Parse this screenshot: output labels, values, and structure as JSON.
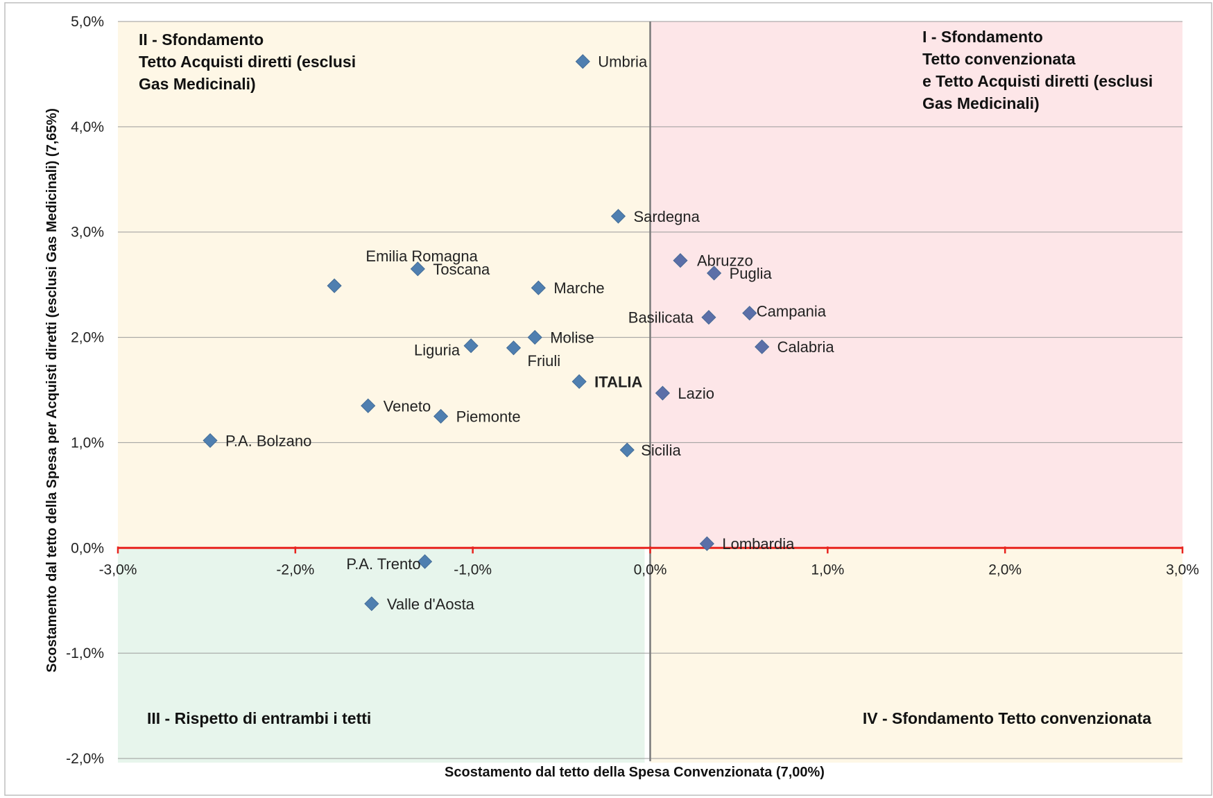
{
  "chart_data": {
    "type": "scatter",
    "title": "",
    "xlabel": "Scostamento dal tetto della Spesa Convenzionata (7,00%)",
    "ylabel": "Scostamento dal tetto della Spesa per Acquisti diretti   (esclusi Gas Medicinali) (7,65%)",
    "xlim": [
      -0.03,
      0.03
    ],
    "ylim": [
      -0.02,
      0.05
    ],
    "x_ticks": [
      {
        "value": -0.03,
        "label": "-3,0%"
      },
      {
        "value": -0.02,
        "label": "-2,0%"
      },
      {
        "value": -0.01,
        "label": "-1,0%"
      },
      {
        "value": 0.0,
        "label": "0,0%"
      },
      {
        "value": 0.01,
        "label": "1,0%"
      },
      {
        "value": 0.02,
        "label": "2,0%"
      },
      {
        "value": 0.03,
        "label": "3,0%"
      }
    ],
    "y_ticks": [
      {
        "value": 0.05,
        "label": "5,0%"
      },
      {
        "value": 0.04,
        "label": "4,0%"
      },
      {
        "value": 0.03,
        "label": "3,0%"
      },
      {
        "value": 0.02,
        "label": "2,0%"
      },
      {
        "value": 0.01,
        "label": "1,0%"
      },
      {
        "value": 0.0,
        "label": "0,0%"
      },
      {
        "value": -0.01,
        "label": "-1,0%"
      },
      {
        "value": -0.02,
        "label": "-2,0%"
      }
    ],
    "grid": "horizontal",
    "quadrants": [
      {
        "id": "I",
        "lines": [
          "I - Sfondamento",
          "Tetto convenzionata",
          "e Tetto Acquisti diretti (esclusi",
          "Gas Medicinali)"
        ],
        "color": "#fde6e8"
      },
      {
        "id": "II",
        "lines": [
          "II - Sfondamento",
          "Tetto Acquisti diretti (esclusi",
          "Gas Medicinali)"
        ],
        "color": "#fef7e6"
      },
      {
        "id": "III",
        "lines": [
          "III - Rispetto di entrambi i tetti"
        ],
        "color": "#e7f5ec"
      },
      {
        "id": "IV",
        "lines": [
          "IV - Sfondamento Tetto convenzionata"
        ],
        "color": "#fef7e6"
      }
    ],
    "marker_color": "#4f7fb0",
    "marker_color_alt": "#5b6fa8",
    "threshold_line_color": "#e8231e",
    "points": [
      {
        "label": "Umbria",
        "x": -0.0038,
        "y": 0.0462
      },
      {
        "label": "Sardegna",
        "x": -0.0018,
        "y": 0.0315
      },
      {
        "label": "Emilia Romagna",
        "x": -0.0178,
        "y": 0.0249
      },
      {
        "label": "Toscana",
        "x": -0.0131,
        "y": 0.0265
      },
      {
        "label": "Marche",
        "x": -0.0063,
        "y": 0.0247
      },
      {
        "label": "Abruzzo",
        "x": 0.0017,
        "y": 0.0273
      },
      {
        "label": "Puglia",
        "x": 0.0036,
        "y": 0.0261
      },
      {
        "label": "Campania",
        "x": 0.0056,
        "y": 0.0223
      },
      {
        "label": "Basilicata",
        "x": 0.0033,
        "y": 0.0219
      },
      {
        "label": "Calabria",
        "x": 0.0063,
        "y": 0.0191
      },
      {
        "label": "Molise",
        "x": -0.0065,
        "y": 0.02
      },
      {
        "label": "Liguria",
        "x": -0.0101,
        "y": 0.0192
      },
      {
        "label": "Friuli",
        "x": -0.0077,
        "y": 0.019
      },
      {
        "label": "ITALIA",
        "x": -0.004,
        "y": 0.0158
      },
      {
        "label": "Lazio",
        "x": 0.0007,
        "y": 0.0147
      },
      {
        "label": "Veneto",
        "x": -0.0159,
        "y": 0.0135
      },
      {
        "label": "Piemonte",
        "x": -0.0118,
        "y": 0.0125
      },
      {
        "label": "P.A. Bolzano",
        "x": -0.0248,
        "y": 0.0102
      },
      {
        "label": "Sicilia",
        "x": -0.0013,
        "y": 0.0093
      },
      {
        "label": "Lombardia",
        "x": 0.0032,
        "y": 0.0004
      },
      {
        "label": "P.A. Trento",
        "x": -0.0127,
        "y": -0.0013
      },
      {
        "label": "Valle d'Aosta",
        "x": -0.0157,
        "y": -0.0053
      }
    ]
  }
}
